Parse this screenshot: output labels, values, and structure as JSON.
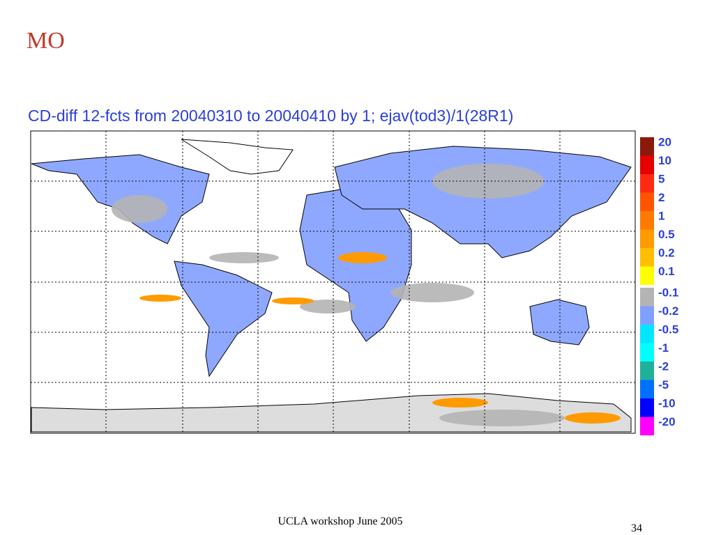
{
  "slide": {
    "title": "MO",
    "footer": "UCLA workshop June 2005",
    "page_number": "34"
  },
  "map": {
    "title": "CD-diff 12-fcts from 20040310 to 20040410 by 1; ejav(tod3)/1(28R1)",
    "legend": [
      {
        "label": "20",
        "color": "#8b1a0a"
      },
      {
        "label": "10",
        "color": "#e60000"
      },
      {
        "label": "5",
        "color": "#ff2a10"
      },
      {
        "label": "2",
        "color": "#ff5500"
      },
      {
        "label": "1",
        "color": "#ff7a00"
      },
      {
        "label": "0.5",
        "color": "#ff9a00"
      },
      {
        "label": "0.2",
        "color": "#ffbf00"
      },
      {
        "label": "0.1",
        "color": "#ffff00"
      },
      {
        "label": "-0.1",
        "color": "#b4b4b4"
      },
      {
        "label": "-0.2",
        "color": "#80a0ff"
      },
      {
        "label": "-0.5",
        "color": "#00e6ff"
      },
      {
        "label": "-1",
        "color": "#00ffff"
      },
      {
        "label": "-2",
        "color": "#20b09a"
      },
      {
        "label": "-5",
        "color": "#0070ff"
      },
      {
        "label": "-10",
        "color": "#0000ff"
      },
      {
        "label": "-20",
        "color": "#ff00ff"
      }
    ]
  }
}
